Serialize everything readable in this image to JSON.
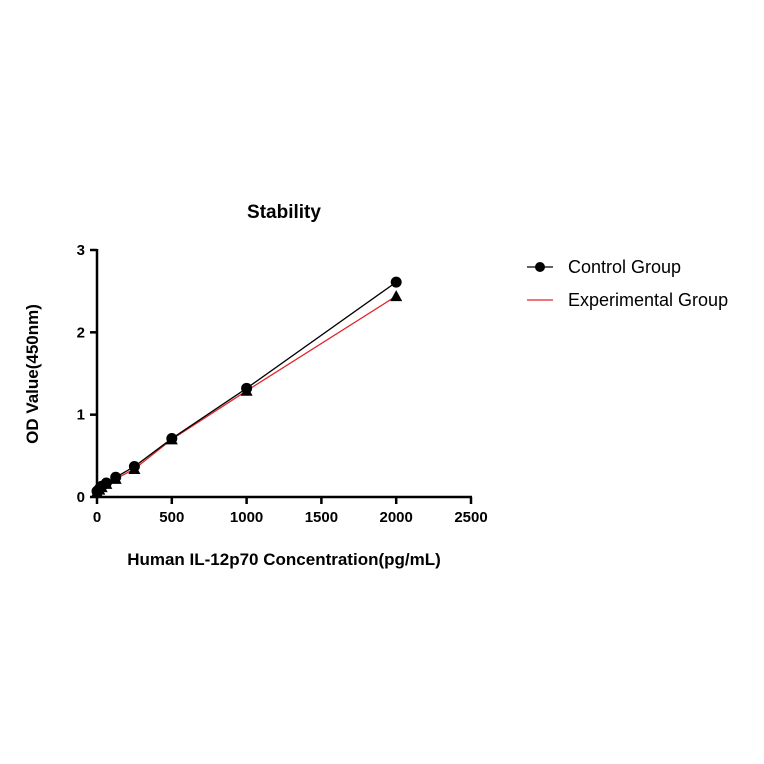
{
  "chart_data": {
    "type": "line",
    "title": "Stability",
    "xlabel": "Human IL-12p70 Concentration(pg/mL)",
    "ylabel": "OD Value(450nm)",
    "xlim": [
      0,
      2500
    ],
    "ylim": [
      0,
      3
    ],
    "xticks": [
      0,
      500,
      1000,
      1500,
      2000,
      2500
    ],
    "yticks": [
      0,
      1,
      2,
      3
    ],
    "grid": false,
    "legend_position": "right",
    "x": [
      0,
      15.6,
      31.25,
      62.5,
      125,
      250,
      500,
      1000,
      2000
    ],
    "series": [
      {
        "name": "Control Group",
        "color": "#000000",
        "marker": "circle",
        "values": [
          0.07,
          0.1,
          0.13,
          0.17,
          0.24,
          0.37,
          0.71,
          1.32,
          2.61
        ]
      },
      {
        "name": "Experimental Group",
        "color": "#e0262b",
        "marker": "triangle",
        "values": [
          0.06,
          0.09,
          0.12,
          0.16,
          0.22,
          0.34,
          0.7,
          1.29,
          2.44
        ]
      }
    ]
  }
}
